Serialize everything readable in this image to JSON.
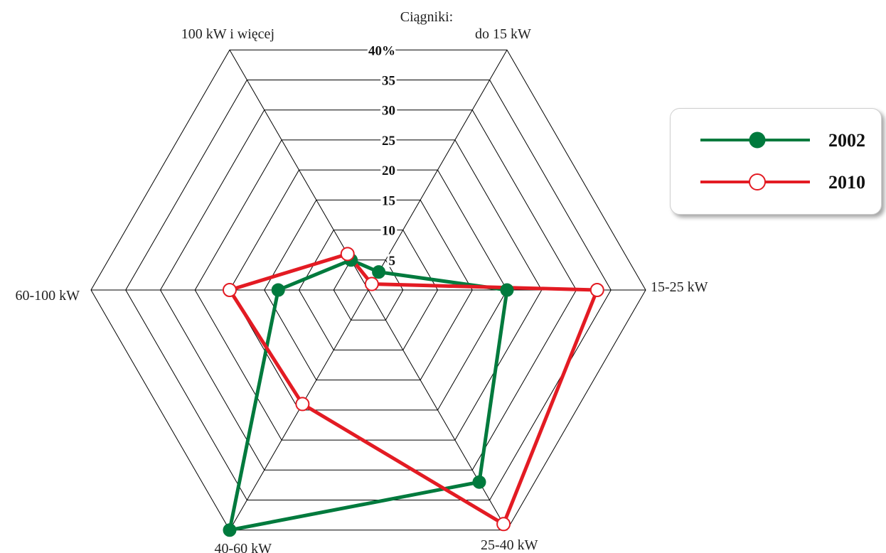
{
  "chart_data": {
    "type": "radar",
    "title": "Ciągniki:",
    "axes": [
      "do 15 kW",
      "15-25 kW",
      "25-40 kW",
      "40-60 kW",
      "60-100 kW",
      "100 kW i więcej"
    ],
    "r_range": [
      0,
      40
    ],
    "r_ticks": [
      "5",
      "10",
      "15",
      "20",
      "25",
      "30",
      "35",
      "40%"
    ],
    "series": [
      {
        "name": "2002",
        "color": "#007a3d",
        "marker": "filled-circle",
        "values": [
          3,
          20,
          32,
          40,
          13,
          5
        ]
      },
      {
        "name": "2010",
        "color": "#e31b23",
        "marker": "open-circle",
        "values": [
          1,
          33,
          39,
          19,
          20,
          6
        ]
      }
    ],
    "legend_position": "right",
    "grid": true
  }
}
